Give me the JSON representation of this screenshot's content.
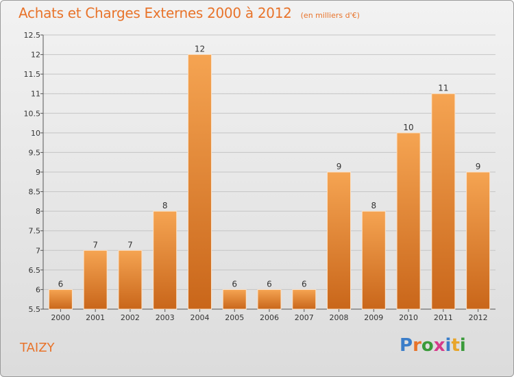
{
  "header": {
    "title": "Achats et Charges Externes 2000 à 2012",
    "subtitle": "(en milliers d'€)"
  },
  "place": "TAIZY",
  "logo": {
    "letters": [
      "P",
      "r",
      "o",
      "x",
      "i",
      "t",
      "i"
    ],
    "colors": [
      "#3a7dc9",
      "#e8732a",
      "#3a9a3a",
      "#d63a8a",
      "#3a7dc9",
      "#e8a52a",
      "#3a9a3a"
    ]
  },
  "colors": {
    "bar_light": "#f5a452",
    "bar_dark": "#c9661a",
    "accent": "#e8732a"
  },
  "chart_data": {
    "type": "bar",
    "title": "Achats et Charges Externes 2000 à 2012",
    "subtitle": "(en milliers d'€)",
    "categories": [
      "2000",
      "2001",
      "2002",
      "2003",
      "2004",
      "2005",
      "2006",
      "2007",
      "2008",
      "2009",
      "2010",
      "2011",
      "2012"
    ],
    "values": [
      6,
      7,
      7,
      8,
      12,
      6,
      6,
      6,
      9,
      8,
      10,
      11,
      9
    ],
    "ylim": [
      5.5,
      12.5
    ],
    "yticks": [
      "5.5",
      "6",
      "6.5",
      "7",
      "7.5",
      "8",
      "8.5",
      "9",
      "9.5",
      "10",
      "10.5",
      "11",
      "11.5",
      "12",
      "12.5"
    ],
    "grid": true,
    "xlabel": "",
    "ylabel": ""
  }
}
